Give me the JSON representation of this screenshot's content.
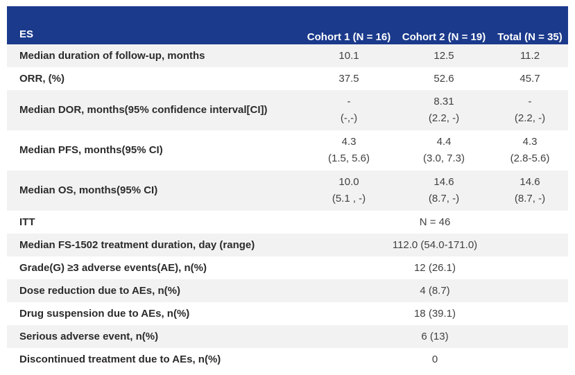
{
  "header": {
    "es": "ES",
    "cohort1": "Cohort 1 (N = 16)",
    "cohort2": "Cohort 2 (N = 19)",
    "total": "Total (N = 35)"
  },
  "rows": [
    {
      "label": "Median duration of follow-up, months",
      "c1": "10.1",
      "c2": "12.5",
      "t": "11.2"
    },
    {
      "label": "ORR, (%)",
      "c1": "37.5",
      "c2": "52.6",
      "t": "45.7"
    },
    {
      "label": "Median DOR, months(95% confidence interval[CI])",
      "c1": "-",
      "c1b": "(-,-)",
      "c2": "8.31",
      "c2b": "(2.2, -)",
      "t": "-",
      "tb": "(2.2, -)"
    },
    {
      "label": "Median PFS, months(95% CI)",
      "c1": "4.3",
      "c1b": "(1.5, 5.6)",
      "c2": "4.4",
      "c2b": "(3.0, 7.3)",
      "t": "4.3",
      "tb": "(2.8-5.6)"
    },
    {
      "label": "Median OS, months(95% CI)",
      "c1": "10.0",
      "c1b": "(5.1 , -)",
      "c2": "14.6",
      "c2b": "(8.7, -)",
      "t": "14.6",
      "tb": "(8.7, -)"
    }
  ],
  "itt_rows": [
    {
      "label": "ITT",
      "value": "N = 46"
    },
    {
      "label": "Median FS-1502 treatment duration, day (range)",
      "value": "112.0 (54.0-171.0)"
    },
    {
      "label": "Grade(G) ≥3 adverse events(AE), n(%)",
      "value": "12 (26.1)"
    },
    {
      "label": "Dose reduction due to AEs, n(%)",
      "value": "4 (8.7)"
    },
    {
      "label": "Drug suspension due to AEs, n(%)",
      "value": "18 (39.1)"
    },
    {
      "label": "Serious adverse event, n(%)",
      "value": "6 (13)"
    },
    {
      "label": "Discontinued treatment due to AEs, n(%)",
      "value": "0"
    }
  ],
  "colors": {
    "header_bg": "#1b3a8c",
    "stripe": "#f2f2f2"
  }
}
